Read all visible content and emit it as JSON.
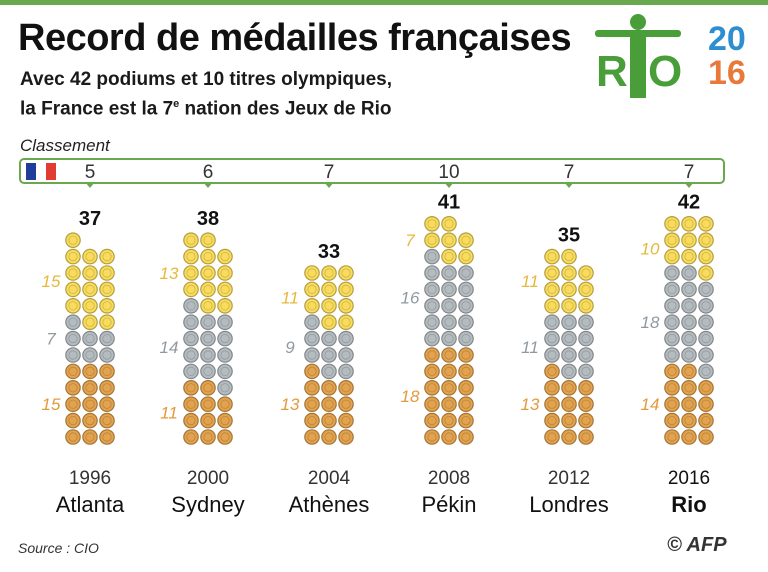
{
  "header": {
    "title": "Record de médailles françaises",
    "subtitle_line1": "Avec 42 podiums et 10 titres olympiques,",
    "subtitle_line2_pre": "la France est la 7",
    "subtitle_line2_sup": "e",
    "subtitle_line2_post": " nation des Jeux de Rio"
  },
  "logo": {
    "word": "RIO",
    "year_top": "20",
    "year_bottom": "16",
    "colors": {
      "green": "#4a9e3a",
      "blue": "#2d8fd0",
      "orange": "#e8793a"
    }
  },
  "ranking": {
    "label": "Classement",
    "flag": [
      "#1f3e9c",
      "#ffffff",
      "#e03c31"
    ]
  },
  "chart_data": {
    "type": "bar",
    "title": "",
    "categories": [
      "1996",
      "2000",
      "2004",
      "2008",
      "2012",
      "2016"
    ],
    "cities": [
      "Atlanta",
      "Sydney",
      "Athènes",
      "Pékin",
      "Londres",
      "Rio"
    ],
    "rankings": [
      5,
      6,
      7,
      10,
      7,
      7
    ],
    "totals": [
      37,
      38,
      33,
      41,
      35,
      42
    ],
    "series": [
      {
        "name": "Or",
        "color": "#f9dc5c",
        "values": [
          15,
          13,
          11,
          7,
          11,
          10
        ]
      },
      {
        "name": "Argent",
        "color": "#b4bcbf",
        "values": [
          7,
          14,
          9,
          16,
          11,
          18
        ]
      },
      {
        "name": "Bronze",
        "color": "#e3a24d",
        "values": [
          15,
          11,
          13,
          18,
          13,
          14
        ]
      }
    ],
    "label_colors": {
      "gold": "#e5b93a",
      "silver": "#8f9aa0",
      "bronze": "#e39a3c"
    },
    "highlight": "2016"
  },
  "footer": {
    "source": "Source : CIO",
    "credit": "© AFP"
  }
}
